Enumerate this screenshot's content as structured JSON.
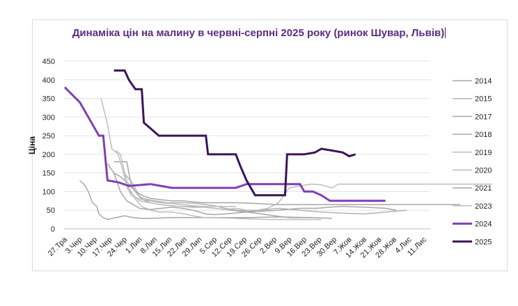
{
  "title": "Динаміка цін на малину в червні-серпні 2025 року (ринок Шувар, Львів)",
  "chart_data": {
    "type": "line",
    "ylabel": "Ціна",
    "xlabel": "",
    "ylim": [
      0,
      450
    ],
    "yticks": [
      0,
      50,
      100,
      150,
      200,
      250,
      300,
      350,
      400,
      450
    ],
    "x_ticks": [
      "27.Тра",
      "3.Чер",
      "10.Чер",
      "17.Чер",
      "24.Чер",
      "1.Лип",
      "8.Лип",
      "15.Лип",
      "22.Лип",
      "29.Лип",
      "5.Сер",
      "12.Сер",
      "19.Сер",
      "26.Сер",
      "2.Вер",
      "9.Вер",
      "16.Вер",
      "23.Вер",
      "30.Вер",
      "7.Жов",
      "14.Жов",
      "21.Жов",
      "28.Жов",
      "4.Лис",
      "11.Лис"
    ],
    "x_range": [
      "27.Тра",
      "15.Лис"
    ],
    "grid": "horizontal",
    "legend_position": "right",
    "series": [
      {
        "name": "2014",
        "color": "#a6a6a6",
        "width": 1.5,
        "points": [
          [
            23,
            150
          ],
          [
            26,
            140
          ],
          [
            30,
            120
          ],
          [
            33,
            100
          ],
          [
            36,
            90
          ],
          [
            40,
            82
          ],
          [
            45,
            78
          ],
          [
            50,
            75
          ],
          [
            55,
            75
          ],
          [
            60,
            72
          ],
          [
            65,
            70
          ],
          [
            72,
            70
          ],
          [
            80,
            70
          ],
          [
            90,
            68
          ],
          [
            100,
            65
          ],
          [
            110,
            65
          ],
          [
            120,
            65
          ],
          [
            130,
            65
          ],
          [
            145,
            65
          ],
          [
            160,
            65
          ],
          [
            175,
            65
          ],
          [
            185,
            65
          ]
        ]
      },
      {
        "name": "2015",
        "color": "#b2b2b2",
        "width": 1.5,
        "points": [
          [
            28,
            148
          ],
          [
            32,
            120
          ],
          [
            35,
            85
          ],
          [
            38,
            80
          ],
          [
            42,
            75
          ],
          [
            48,
            70
          ],
          [
            55,
            70
          ],
          [
            62,
            68
          ],
          [
            70,
            62
          ],
          [
            75,
            55
          ],
          [
            80,
            50
          ],
          [
            86,
            48
          ],
          [
            92,
            50
          ],
          [
            100,
            55
          ],
          [
            110,
            50
          ],
          [
            120,
            45
          ],
          [
            130,
            42
          ],
          [
            140,
            40
          ],
          [
            150,
            45
          ],
          [
            160,
            50
          ]
        ]
      },
      {
        "name": "2017",
        "color": "#a6a6a6",
        "width": 1.5,
        "points": [
          [
            23,
            180
          ],
          [
            26,
            180
          ],
          [
            29,
            180
          ],
          [
            31,
            120
          ],
          [
            33,
            100
          ],
          [
            36,
            80
          ],
          [
            40,
            70
          ],
          [
            45,
            65
          ],
          [
            50,
            62
          ],
          [
            55,
            60
          ],
          [
            60,
            58
          ],
          [
            65,
            58
          ],
          [
            70,
            55
          ],
          [
            78,
            50
          ],
          [
            85,
            45
          ],
          [
            92,
            40
          ],
          [
            98,
            35
          ],
          [
            105,
            30
          ],
          [
            115,
            30
          ],
          [
            125,
            28
          ]
        ]
      },
      {
        "name": "2018",
        "color": "#a6a6a6",
        "width": 1.5,
        "points": [
          [
            7,
            130
          ],
          [
            9,
            120
          ],
          [
            11,
            100
          ],
          [
            13,
            70
          ],
          [
            15,
            60
          ],
          [
            16,
            40
          ],
          [
            18,
            30
          ],
          [
            20,
            25
          ],
          [
            24,
            30
          ],
          [
            28,
            35
          ],
          [
            32,
            30
          ],
          [
            36,
            28
          ],
          [
            40,
            28
          ],
          [
            50,
            30
          ],
          [
            60,
            30
          ],
          [
            70,
            30
          ],
          [
            85,
            30
          ],
          [
            100,
            32
          ],
          [
            115,
            30
          ]
        ]
      },
      {
        "name": "2019",
        "color": "#bdbdbd",
        "width": 1.5,
        "points": [
          [
            17,
            350
          ],
          [
            20,
            280
          ],
          [
            22,
            215
          ],
          [
            25,
            200
          ],
          [
            27,
            160
          ],
          [
            29,
            115
          ],
          [
            31,
            90
          ],
          [
            35,
            80
          ],
          [
            40,
            75
          ],
          [
            45,
            70
          ],
          [
            50,
            68
          ],
          [
            55,
            65
          ],
          [
            60,
            62
          ],
          [
            65,
            60
          ],
          [
            70,
            60
          ],
          [
            80,
            60
          ]
        ]
      },
      {
        "name": "2020",
        "color": "#bdbdbd",
        "width": 1.5,
        "points": [
          [
            24,
            210
          ],
          [
            26,
            200
          ],
          [
            28,
            150
          ],
          [
            30,
            110
          ],
          [
            33,
            80
          ],
          [
            36,
            60
          ],
          [
            40,
            50
          ],
          [
            44,
            45
          ],
          [
            50,
            45
          ],
          [
            56,
            40
          ],
          [
            60,
            35
          ],
          [
            65,
            30
          ],
          [
            70,
            30
          ],
          [
            80,
            28
          ],
          [
            95,
            25
          ],
          [
            110,
            25
          ],
          [
            120,
            25
          ]
        ]
      },
      {
        "name": "2021",
        "color": "#a6a6a6",
        "width": 1.5,
        "points": [
          [
            20,
            175
          ],
          [
            23,
            150
          ],
          [
            26,
            100
          ],
          [
            29,
            75
          ],
          [
            32,
            65
          ],
          [
            35,
            55
          ],
          [
            40,
            52
          ],
          [
            45,
            55
          ],
          [
            50,
            58
          ],
          [
            55,
            55
          ],
          [
            60,
            50
          ],
          [
            63,
            45
          ],
          [
            66,
            40
          ],
          [
            70,
            38
          ],
          [
            75,
            40
          ],
          [
            85,
            45
          ],
          [
            100,
            50
          ],
          [
            110,
            55
          ],
          [
            118,
            55
          ],
          [
            124,
            58
          ],
          [
            130,
            60
          ],
          [
            140,
            58
          ],
          [
            150,
            55
          ],
          [
            155,
            50
          ]
        ]
      },
      {
        "name": "2023",
        "color": "#bdbdbd",
        "width": 1.5,
        "points": [
          [
            29,
            110
          ],
          [
            32,
            90
          ],
          [
            35,
            75
          ],
          [
            40,
            70
          ],
          [
            45,
            65
          ],
          [
            50,
            62
          ],
          [
            55,
            60
          ],
          [
            60,
            60
          ],
          [
            65,
            58
          ],
          [
            70,
            55
          ],
          [
            75,
            52
          ],
          [
            80,
            55
          ],
          [
            85,
            50
          ],
          [
            90,
            50
          ],
          [
            95,
            55
          ],
          [
            100,
            70
          ],
          [
            105,
            110
          ],
          [
            110,
            115
          ],
          [
            115,
            120
          ],
          [
            120,
            118
          ],
          [
            125,
            110
          ],
          [
            128,
            120
          ],
          [
            140,
            120
          ],
          [
            160,
            120
          ],
          [
            180,
            120
          ],
          [
            200,
            120
          ]
        ]
      },
      {
        "name": "2024",
        "color": "#7e3fb5",
        "width": 3,
        "points": [
          [
            0,
            380
          ],
          [
            7,
            340
          ],
          [
            12,
            290
          ],
          [
            16,
            250
          ],
          [
            18,
            250
          ],
          [
            20,
            130
          ],
          [
            25,
            125
          ],
          [
            30,
            115
          ],
          [
            40,
            120
          ],
          [
            45,
            115
          ],
          [
            50,
            110
          ],
          [
            60,
            110
          ],
          [
            70,
            110
          ],
          [
            80,
            110
          ],
          [
            85,
            120
          ],
          [
            100,
            120
          ],
          [
            110,
            120
          ],
          [
            112,
            100
          ],
          [
            116,
            100
          ],
          [
            120,
            90
          ],
          [
            124,
            75
          ],
          [
            130,
            75
          ],
          [
            140,
            75
          ],
          [
            150,
            75
          ]
        ]
      },
      {
        "name": "2025",
        "color": "#3b1458",
        "width": 3,
        "points": [
          [
            23,
            425
          ],
          [
            28,
            425
          ],
          [
            30,
            400
          ],
          [
            33,
            375
          ],
          [
            36,
            375
          ],
          [
            37,
            285
          ],
          [
            40,
            270
          ],
          [
            44,
            250
          ],
          [
            50,
            250
          ],
          [
            60,
            250
          ],
          [
            66,
            250
          ],
          [
            67,
            200
          ],
          [
            72,
            200
          ],
          [
            80,
            200
          ],
          [
            82,
            170
          ],
          [
            85,
            130
          ],
          [
            88,
            100
          ],
          [
            89,
            90
          ],
          [
            96,
            90
          ],
          [
            103,
            90
          ],
          [
            104,
            200
          ],
          [
            112,
            200
          ],
          [
            117,
            205
          ],
          [
            120,
            215
          ],
          [
            125,
            210
          ],
          [
            130,
            205
          ],
          [
            133,
            195
          ],
          [
            136,
            200
          ]
        ]
      }
    ]
  }
}
